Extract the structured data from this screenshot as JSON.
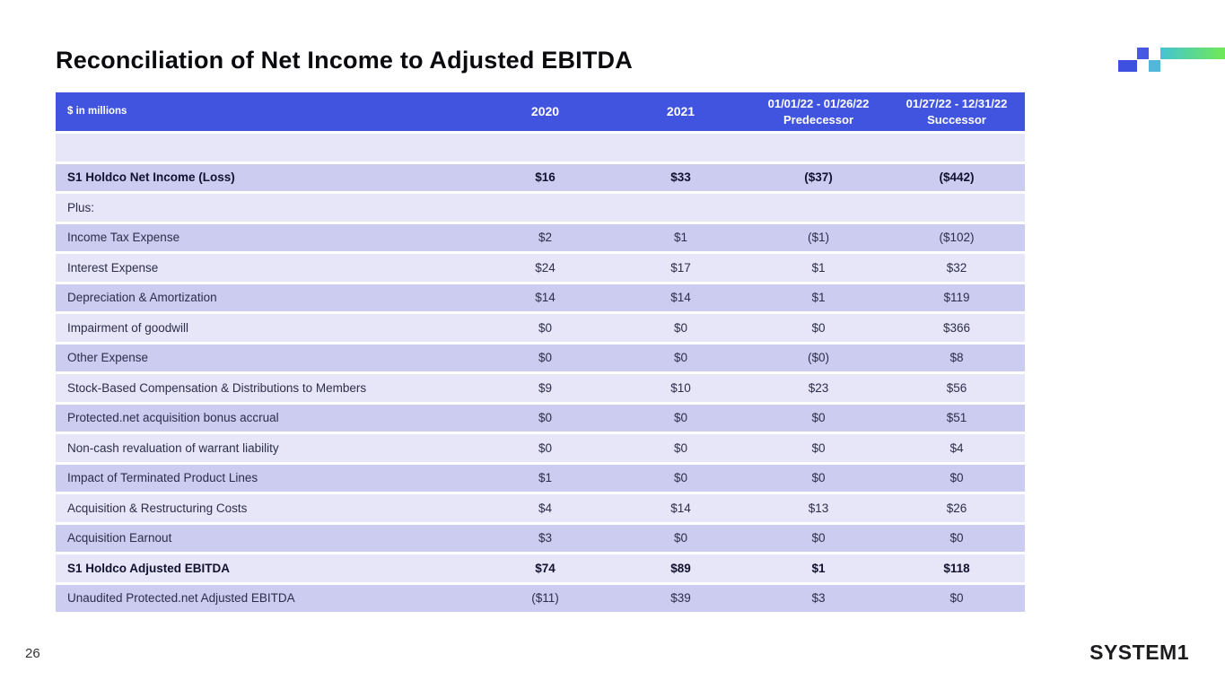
{
  "slide": {
    "title": "Reconciliation of Net Income to Adjusted EBITDA",
    "page_number": "26",
    "footer_logo_text": "SYSTEM1"
  },
  "colors": {
    "header_bg": "#4154df",
    "row_light": "#e6e6f8",
    "row_dark": "#cbccef",
    "logo_blue": "#3d50e0",
    "logo_violet": "#4759e3",
    "logo_teal": "#53b7da",
    "logo_gradient_start": "#45c4d4",
    "logo_gradient_end": "#70e954"
  },
  "table": {
    "header": {
      "units_label": "$ in millions",
      "columns": [
        {
          "line1": "2020",
          "line2": ""
        },
        {
          "line1": "2021",
          "line2": ""
        },
        {
          "line1": "01/01/22 - 01/26/22",
          "line2": "Predecessor"
        },
        {
          "line1": "01/27/22 - 12/31/22",
          "line2": "Successor"
        }
      ]
    },
    "rows": [
      {
        "label": "",
        "values": [
          "",
          "",
          "",
          ""
        ],
        "style": "light",
        "bold": false
      },
      {
        "label": "S1 Holdco Net Income (Loss)",
        "values": [
          "$16",
          "$33",
          "($37)",
          "($442)"
        ],
        "style": "dark",
        "bold": true
      },
      {
        "label": "Plus:",
        "values": [
          "",
          "",
          "",
          ""
        ],
        "style": "light",
        "bold": false
      },
      {
        "label": "Income Tax Expense",
        "values": [
          "$2",
          "$1",
          "($1)",
          "($102)"
        ],
        "style": "dark",
        "bold": false
      },
      {
        "label": "Interest Expense",
        "values": [
          "$24",
          "$17",
          "$1",
          "$32"
        ],
        "style": "light",
        "bold": false
      },
      {
        "label": "Depreciation & Amortization",
        "values": [
          "$14",
          "$14",
          "$1",
          "$119"
        ],
        "style": "dark",
        "bold": false
      },
      {
        "label": "Impairment of goodwill",
        "values": [
          "$0",
          "$0",
          "$0",
          "$366"
        ],
        "style": "light",
        "bold": false
      },
      {
        "label": "Other Expense",
        "values": [
          "$0",
          "$0",
          "($0)",
          "$8"
        ],
        "style": "dark",
        "bold": false
      },
      {
        "label": "Stock-Based Compensation & Distributions to Members",
        "values": [
          "$9",
          "$10",
          "$23",
          "$56"
        ],
        "style": "light",
        "bold": false
      },
      {
        "label": "Protected.net acquisition bonus accrual",
        "values": [
          "$0",
          "$0",
          "$0",
          "$51"
        ],
        "style": "dark",
        "bold": false
      },
      {
        "label": "Non-cash revaluation of warrant liability",
        "values": [
          "$0",
          "$0",
          "$0",
          "$4"
        ],
        "style": "light",
        "bold": false
      },
      {
        "label": "Impact of Terminated Product Lines",
        "values": [
          "$1",
          "$0",
          "$0",
          "$0"
        ],
        "style": "dark",
        "bold": false
      },
      {
        "label": "Acquisition & Restructuring Costs",
        "values": [
          "$4",
          "$14",
          "$13",
          "$26"
        ],
        "style": "light",
        "bold": false
      },
      {
        "label": "Acquisition Earnout",
        "values": [
          "$3",
          "$0",
          "$0",
          "$0"
        ],
        "style": "dark",
        "bold": false
      },
      {
        "label": "S1 Holdco Adjusted EBITDA",
        "values": [
          "$74",
          "$89",
          "$1",
          "$118"
        ],
        "style": "light",
        "bold": true
      },
      {
        "label": "Unaudited Protected.net Adjusted EBITDA",
        "values": [
          "($11)",
          "$39",
          "$3",
          "$0"
        ],
        "style": "dark",
        "bold": false
      }
    ]
  }
}
